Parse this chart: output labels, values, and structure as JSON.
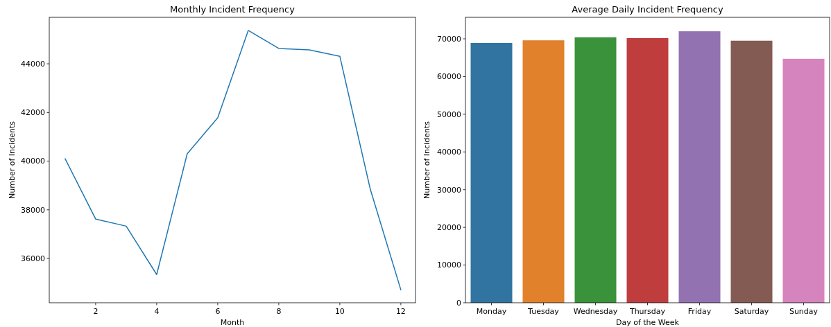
{
  "chart_data": [
    {
      "type": "line",
      "title": "Monthly Incident Frequency",
      "xlabel": "Month",
      "ylabel": "Number of Incidents",
      "x": [
        1,
        2,
        3,
        4,
        5,
        6,
        7,
        8,
        9,
        10,
        11,
        12
      ],
      "series": [
        {
          "color": "#1f77b4",
          "values": [
            40100,
            37620,
            37330,
            35340,
            40300,
            41780,
            45370,
            44630,
            44570,
            44310,
            38840,
            34710
          ]
        }
      ],
      "xlim": [
        0.48,
        12.48
      ],
      "xticks": [
        2,
        4,
        6,
        8,
        10,
        12
      ],
      "ylim": [
        34180,
        45910
      ],
      "yticks": [
        36000,
        38000,
        40000,
        42000,
        44000
      ],
      "grid": false
    },
    {
      "type": "bar",
      "title": "Average Daily Incident Frequency",
      "xlabel": "Day of the Week",
      "ylabel": "Number of Incidents",
      "categories": [
        "Monday",
        "Tuesday",
        "Wednesday",
        "Thursday",
        "Friday",
        "Saturday",
        "Sunday"
      ],
      "values": [
        68900,
        69600,
        70400,
        70200,
        72000,
        69500,
        64700
      ],
      "colors": [
        "#3274a1",
        "#e1812c",
        "#3a923a",
        "#c03d3e",
        "#9372b2",
        "#845b53",
        "#d684bd"
      ],
      "ylim": [
        0,
        75700
      ],
      "yticks": [
        0,
        10000,
        20000,
        30000,
        40000,
        50000,
        60000,
        70000
      ],
      "grid": false
    }
  ]
}
